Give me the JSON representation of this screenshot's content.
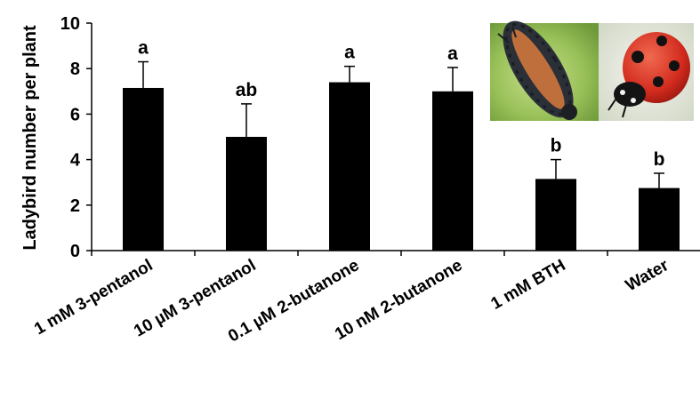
{
  "chart_data": {
    "type": "bar",
    "title": "",
    "xlabel": "",
    "ylabel": "Ladybird number per plant",
    "ylim": [
      0,
      10
    ],
    "yticks": [
      "0",
      "2",
      "4",
      "6",
      "8",
      "10"
    ],
    "grid": false,
    "legend": "none",
    "bar_color": "#000000",
    "categories": [
      "1 mM 3-pentanol",
      "10 µM 3-pentanol",
      "0.1 µM 2-butanone",
      "10 nM 2-butanone",
      "1 mM BTH",
      "Water"
    ],
    "values": [
      7.15,
      5.0,
      7.4,
      7.0,
      3.15,
      2.75
    ],
    "error": [
      1.15,
      1.45,
      0.7,
      1.05,
      0.85,
      0.65
    ],
    "significance": [
      "a",
      "ab",
      "a",
      "a",
      "b",
      "b"
    ],
    "insets": [
      "ladybird-larva-photo",
      "adult-ladybird-photo"
    ]
  }
}
